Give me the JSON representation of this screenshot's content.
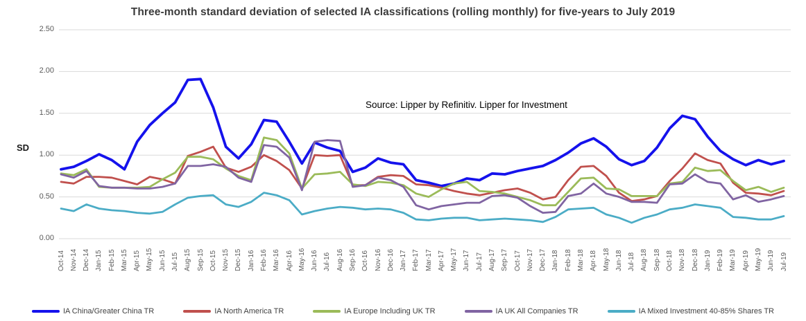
{
  "chart": {
    "title": "Three-month standard deviation of selected IA classifications (rolling monthly) for five-years to July 2019",
    "source": "Source: Lipper by  Refinitiv. Lipper for Investment",
    "ylabel": "SD"
  },
  "chart_data": {
    "type": "line",
    "title": "Three-month standard deviation of selected IA classifications (rolling monthly) for five-years to July 2019",
    "ylabel": "SD",
    "ylim": [
      0,
      2.5
    ],
    "yticks": [
      "0.00",
      "0.50",
      "1.00",
      "1.50",
      "2.00",
      "2.50"
    ],
    "grid": true,
    "legend_position": "bottom",
    "categories": [
      "Oct-14",
      "Nov-14",
      "Dec-14",
      "Jan-15",
      "Feb-15",
      "Mar-15",
      "Apr-15",
      "May-15",
      "Jun-15",
      "Jul-15",
      "Aug-15",
      "Sep-15",
      "Oct-15",
      "Nov-15",
      "Dec-15",
      "Jan-16",
      "Feb-16",
      "Mar-16",
      "Apr-16",
      "May-16",
      "Jun-16",
      "Jul-16",
      "Aug-16",
      "Sep-16",
      "Oct-16",
      "Nov-16",
      "Dec-16",
      "Jan-17",
      "Feb-17",
      "Mar-17",
      "Apr-17",
      "May-17",
      "Jun-17",
      "Jul-17",
      "Aug-17",
      "Sep-17",
      "Oct-17",
      "Nov-17",
      "Dec-17",
      "Jan-18",
      "Feb-18",
      "Mar-18",
      "Apr-18",
      "May-18",
      "Jun-18",
      "Jul-18",
      "Aug-18",
      "Sep-18",
      "Oct-18",
      "Nov-18",
      "Dec-18",
      "Jan-19",
      "Feb-19",
      "Mar-19",
      "Apr-19",
      "May-19",
      "Jun-19",
      "Jul-19"
    ],
    "series": [
      {
        "name": "IA China/Greater China TR",
        "color": "#1512ec",
        "stroke_width": 3.8,
        "values": [
          0.83,
          0.86,
          0.93,
          1.01,
          0.94,
          0.83,
          1.16,
          1.36,
          1.5,
          1.63,
          1.9,
          1.91,
          1.57,
          1.1,
          0.96,
          1.13,
          1.42,
          1.4,
          1.16,
          0.9,
          1.15,
          1.09,
          1.05,
          0.8,
          0.85,
          0.96,
          0.91,
          0.89,
          0.7,
          0.67,
          0.63,
          0.66,
          0.72,
          0.7,
          0.78,
          0.77,
          0.81,
          0.84,
          0.87,
          0.94,
          1.03,
          1.14,
          1.2,
          1.1,
          0.95,
          0.88,
          0.93,
          1.09,
          1.32,
          1.47,
          1.43,
          1.22,
          1.05,
          0.95,
          0.88,
          0.94,
          0.89,
          0.93
        ]
      },
      {
        "name": "IA North America TR",
        "color": "#c0504d",
        "stroke_width": 2.8,
        "values": [
          0.68,
          0.66,
          0.74,
          0.74,
          0.73,
          0.69,
          0.65,
          0.74,
          0.71,
          0.66,
          0.99,
          1.04,
          1.1,
          0.85,
          0.8,
          0.86,
          1.0,
          0.93,
          0.82,
          0.6,
          1.0,
          0.99,
          1.0,
          0.64,
          0.64,
          0.74,
          0.76,
          0.75,
          0.65,
          0.64,
          0.61,
          0.57,
          0.54,
          0.52,
          0.55,
          0.58,
          0.6,
          0.55,
          0.47,
          0.5,
          0.7,
          0.86,
          0.87,
          0.75,
          0.55,
          0.45,
          0.47,
          0.51,
          0.69,
          0.84,
          1.02,
          0.94,
          0.9,
          0.67,
          0.55,
          0.54,
          0.52,
          0.57
        ]
      },
      {
        "name": "IA Europe Including UK TR",
        "color": "#9bbb59",
        "stroke_width": 2.8,
        "values": [
          0.78,
          0.76,
          0.83,
          0.62,
          0.61,
          0.61,
          0.61,
          0.62,
          0.71,
          0.79,
          0.98,
          0.98,
          0.95,
          0.84,
          0.75,
          0.7,
          1.21,
          1.18,
          1.02,
          0.6,
          0.77,
          0.78,
          0.8,
          0.65,
          0.63,
          0.68,
          0.67,
          0.64,
          0.54,
          0.5,
          0.59,
          0.66,
          0.68,
          0.57,
          0.56,
          0.54,
          0.5,
          0.46,
          0.4,
          0.4,
          0.56,
          0.72,
          0.73,
          0.6,
          0.59,
          0.51,
          0.51,
          0.51,
          0.66,
          0.68,
          0.85,
          0.81,
          0.82,
          0.69,
          0.58,
          0.62,
          0.56,
          0.61
        ]
      },
      {
        "name": "IA UK All Companies TR",
        "color": "#8064a2",
        "stroke_width": 2.8,
        "values": [
          0.77,
          0.73,
          0.81,
          0.63,
          0.61,
          0.61,
          0.6,
          0.6,
          0.62,
          0.66,
          0.87,
          0.87,
          0.89,
          0.86,
          0.73,
          0.68,
          1.12,
          1.1,
          0.97,
          0.58,
          1.16,
          1.18,
          1.17,
          0.62,
          0.64,
          0.73,
          0.7,
          0.62,
          0.4,
          0.35,
          0.39,
          0.41,
          0.43,
          0.43,
          0.51,
          0.52,
          0.49,
          0.39,
          0.31,
          0.32,
          0.51,
          0.54,
          0.66,
          0.54,
          0.5,
          0.44,
          0.44,
          0.43,
          0.65,
          0.66,
          0.77,
          0.68,
          0.66,
          0.47,
          0.52,
          0.44,
          0.47,
          0.51
        ]
      },
      {
        "name": "IA Mixed Investment 40-85% Shares TR",
        "color": "#4bacc6",
        "stroke_width": 2.8,
        "values": [
          0.36,
          0.33,
          0.41,
          0.36,
          0.34,
          0.33,
          0.31,
          0.3,
          0.32,
          0.41,
          0.49,
          0.51,
          0.52,
          0.41,
          0.38,
          0.44,
          0.55,
          0.52,
          0.46,
          0.29,
          0.33,
          0.36,
          0.38,
          0.37,
          0.35,
          0.36,
          0.35,
          0.31,
          0.23,
          0.22,
          0.24,
          0.25,
          0.25,
          0.22,
          0.23,
          0.24,
          0.23,
          0.22,
          0.2,
          0.26,
          0.35,
          0.36,
          0.37,
          0.29,
          0.25,
          0.19,
          0.25,
          0.29,
          0.35,
          0.37,
          0.41,
          0.39,
          0.37,
          0.26,
          0.25,
          0.23,
          0.23,
          0.27
        ]
      }
    ],
    "gridline_color": "#d9d9d9",
    "axis_text_color": "#595959"
  }
}
